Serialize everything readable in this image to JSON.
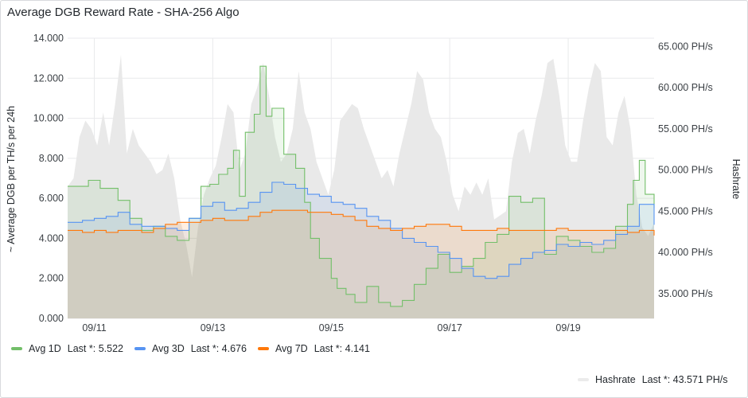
{
  "panel": {
    "title": "Average DGB Reward Rate - SHA-256 Algo"
  },
  "chart_data": {
    "type": "line",
    "title": "Average DGB Reward Rate - SHA-256 Algo",
    "ylabel": "~ Average DGB per TH/s per 24h",
    "y2label": "Hashrate",
    "ylim": [
      0,
      14
    ],
    "y2lim": [
      32000,
      66000
    ],
    "yticks": [
      "0.000",
      "2.000",
      "4.000",
      "6.000",
      "8.000",
      "10.000",
      "12.000",
      "14.000"
    ],
    "y2ticks": [
      "35.000 PH/s",
      "40.000 PH/s",
      "45.000 PH/s",
      "50.000 PH/s",
      "55.000 PH/s",
      "60.000 PH/s",
      "65.000 PH/s"
    ],
    "x_dates": [
      "09/11",
      "09/13",
      "09/15",
      "09/17",
      "09/19"
    ],
    "x_range_days": [
      10.55,
      20.45
    ],
    "grid": true,
    "legend_placement": "bottom",
    "series": [
      {
        "name": "Avg 1D",
        "axis": "left",
        "color": "#73bf69",
        "last_label": "Last *:",
        "last": "5.522",
        "x": [
          10.55,
          10.9,
          11.1,
          11.4,
          11.6,
          11.8,
          12.0,
          12.2,
          12.4,
          12.6,
          12.8,
          12.95,
          13.1,
          13.25,
          13.35,
          13.45,
          13.55,
          13.7,
          13.8,
          13.9,
          14.0,
          14.2,
          14.4,
          14.55,
          14.65,
          14.8,
          15.0,
          15.1,
          15.25,
          15.4,
          15.6,
          15.8,
          16.0,
          16.2,
          16.4,
          16.6,
          16.8,
          17.0,
          17.2,
          17.4,
          17.6,
          17.8,
          18.0,
          18.2,
          18.4,
          18.6,
          18.8,
          19.0,
          19.2,
          19.4,
          19.6,
          19.8,
          20.0,
          20.1,
          20.2,
          20.3,
          20.45
        ],
        "values": [
          6.6,
          6.9,
          6.5,
          5.9,
          5.0,
          4.4,
          4.6,
          4.1,
          3.9,
          5.0,
          6.6,
          6.7,
          7.2,
          7.5,
          8.4,
          6.1,
          9.3,
          10.2,
          12.6,
          10.1,
          10.5,
          8.2,
          7.5,
          5.8,
          4.0,
          3.0,
          2.0,
          1.5,
          1.2,
          0.8,
          1.6,
          0.8,
          0.6,
          0.9,
          1.7,
          2.5,
          3.2,
          2.3,
          2.6,
          3.0,
          3.8,
          4.2,
          6.1,
          5.8,
          6.0,
          3.2,
          4.1,
          3.9,
          3.6,
          3.3,
          3.5,
          4.6,
          5.7,
          6.9,
          7.9,
          6.2,
          5.522
        ]
      },
      {
        "name": "Avg 3D",
        "axis": "left",
        "color": "#5794f2",
        "last_label": "Last *:",
        "last": "4.676",
        "x": [
          10.55,
          10.8,
          11.0,
          11.2,
          11.4,
          11.6,
          11.8,
          12.0,
          12.2,
          12.4,
          12.6,
          12.8,
          13.0,
          13.2,
          13.4,
          13.6,
          13.8,
          14.0,
          14.2,
          14.4,
          14.6,
          14.8,
          15.0,
          15.2,
          15.4,
          15.6,
          15.8,
          16.0,
          16.2,
          16.4,
          16.6,
          16.8,
          17.0,
          17.2,
          17.4,
          17.6,
          17.8,
          18.0,
          18.2,
          18.4,
          18.6,
          18.8,
          19.0,
          19.2,
          19.4,
          19.6,
          19.8,
          20.0,
          20.2,
          20.45
        ],
        "values": [
          4.8,
          4.9,
          5.0,
          5.1,
          5.3,
          4.7,
          4.6,
          4.6,
          4.5,
          4.4,
          5.0,
          5.6,
          5.8,
          5.4,
          5.5,
          5.8,
          6.3,
          6.8,
          6.7,
          6.5,
          6.2,
          6.1,
          5.8,
          5.7,
          5.5,
          5.1,
          4.9,
          4.5,
          4.0,
          3.8,
          3.6,
          3.3,
          3.0,
          2.5,
          2.1,
          2.0,
          2.1,
          2.7,
          3.0,
          3.3,
          3.4,
          3.7,
          3.6,
          3.8,
          3.7,
          3.9,
          4.2,
          4.6,
          5.7,
          4.676
        ]
      },
      {
        "name": "Avg 7D",
        "axis": "left",
        "color": "#ff780a",
        "last_label": "Last *:",
        "last": "4.141",
        "x": [
          10.55,
          10.8,
          11.0,
          11.2,
          11.4,
          11.6,
          11.8,
          12.0,
          12.2,
          12.4,
          12.6,
          12.8,
          13.0,
          13.2,
          13.4,
          13.6,
          13.8,
          14.0,
          14.2,
          14.4,
          14.6,
          14.8,
          15.0,
          15.2,
          15.4,
          15.6,
          15.8,
          16.0,
          16.2,
          16.4,
          16.6,
          16.8,
          17.0,
          17.2,
          17.4,
          17.6,
          17.8,
          18.0,
          18.2,
          18.4,
          18.6,
          18.8,
          19.0,
          19.2,
          19.4,
          19.6,
          19.8,
          20.0,
          20.2,
          20.45
        ],
        "values": [
          4.4,
          4.3,
          4.4,
          4.3,
          4.4,
          4.4,
          4.3,
          4.5,
          4.7,
          4.8,
          4.8,
          4.9,
          5.0,
          4.9,
          4.9,
          5.1,
          5.3,
          5.4,
          5.4,
          5.4,
          5.3,
          5.3,
          5.2,
          5.1,
          4.9,
          4.6,
          4.5,
          4.4,
          4.5,
          4.6,
          4.7,
          4.7,
          4.6,
          4.4,
          4.4,
          4.4,
          4.5,
          4.4,
          4.4,
          4.4,
          4.4,
          4.5,
          4.4,
          4.4,
          4.4,
          4.4,
          4.4,
          4.3,
          4.4,
          4.141
        ]
      },
      {
        "name": "Hashrate",
        "axis": "right",
        "color": "#e0e0e0",
        "last_label": "Last *:",
        "last": "43.571 PH/s",
        "x": [
          10.55,
          10.65,
          10.75,
          10.85,
          10.95,
          11.05,
          11.15,
          11.25,
          11.35,
          11.45,
          11.55,
          11.65,
          11.75,
          11.85,
          11.95,
          12.05,
          12.15,
          12.25,
          12.35,
          12.45,
          12.55,
          12.65,
          12.75,
          12.85,
          12.95,
          13.05,
          13.15,
          13.25,
          13.35,
          13.45,
          13.55,
          13.65,
          13.75,
          13.85,
          13.95,
          14.05,
          14.15,
          14.25,
          14.35,
          14.45,
          14.55,
          14.65,
          14.75,
          14.85,
          14.95,
          15.05,
          15.15,
          15.25,
          15.35,
          15.45,
          15.55,
          15.65,
          15.75,
          15.85,
          15.95,
          16.05,
          16.15,
          16.25,
          16.35,
          16.45,
          16.55,
          16.65,
          16.75,
          16.85,
          16.95,
          17.05,
          17.15,
          17.25,
          17.35,
          17.45,
          17.55,
          17.65,
          17.75,
          17.85,
          17.95,
          18.05,
          18.15,
          18.25,
          18.35,
          18.45,
          18.55,
          18.65,
          18.75,
          18.85,
          18.95,
          19.05,
          19.15,
          19.25,
          19.35,
          19.45,
          19.55,
          19.65,
          19.75,
          19.85,
          19.95,
          20.05,
          20.15,
          20.25,
          20.35,
          20.45
        ],
        "values": [
          48000,
          49000,
          54000,
          56000,
          55000,
          53000,
          57000,
          53000,
          58000,
          64000,
          52000,
          55000,
          53000,
          52000,
          51000,
          49500,
          50000,
          52000,
          49000,
          44000,
          41000,
          37000,
          43000,
          47000,
          49000,
          50500,
          54000,
          58000,
          57000,
          50000,
          52000,
          58000,
          60000,
          63000,
          59000,
          54000,
          51000,
          52000,
          55000,
          62000,
          57000,
          55000,
          51000,
          49000,
          47000,
          50000,
          56000,
          57000,
          58000,
          57500,
          55000,
          53000,
          51000,
          49000,
          50000,
          48000,
          52000,
          55000,
          58000,
          62000,
          61000,
          57000,
          55000,
          54000,
          51000,
          47000,
          45000,
          48000,
          47000,
          48500,
          47000,
          49000,
          44000,
          44500,
          45000,
          51000,
          54500,
          55000,
          52000,
          56000,
          59000,
          63000,
          63500,
          59000,
          53000,
          51000,
          51000,
          56000,
          60000,
          63000,
          62000,
          54000,
          53000,
          57000,
          59000,
          55000,
          47000,
          43000,
          42000,
          43571
        ]
      }
    ]
  }
}
